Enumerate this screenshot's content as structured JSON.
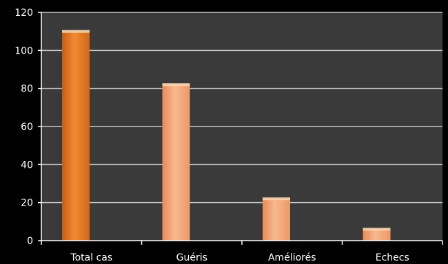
{
  "chart_data": {
    "type": "bar",
    "title": "",
    "xlabel": "",
    "ylabel": "",
    "categories": [
      "Total cas",
      "Guéris",
      "Améliorés",
      "Echecs"
    ],
    "values": [
      110,
      82,
      22,
      6
    ],
    "ylim": [
      0,
      120
    ],
    "yticks": [
      0,
      20,
      40,
      60,
      80,
      100,
      120
    ],
    "grid": true,
    "legend": "none",
    "colors": {
      "background": "#000000",
      "plot_area": "#3a3a3a",
      "gridline": "#c8c8c8",
      "axis": "#ffffff",
      "bar_first": "#e87a22",
      "bar_first_highlight": "#f5a85a",
      "bar_other": "#f2a06c",
      "bar_other_highlight": "#f9c8a0",
      "bar_top": "#fbd6b0"
    }
  }
}
